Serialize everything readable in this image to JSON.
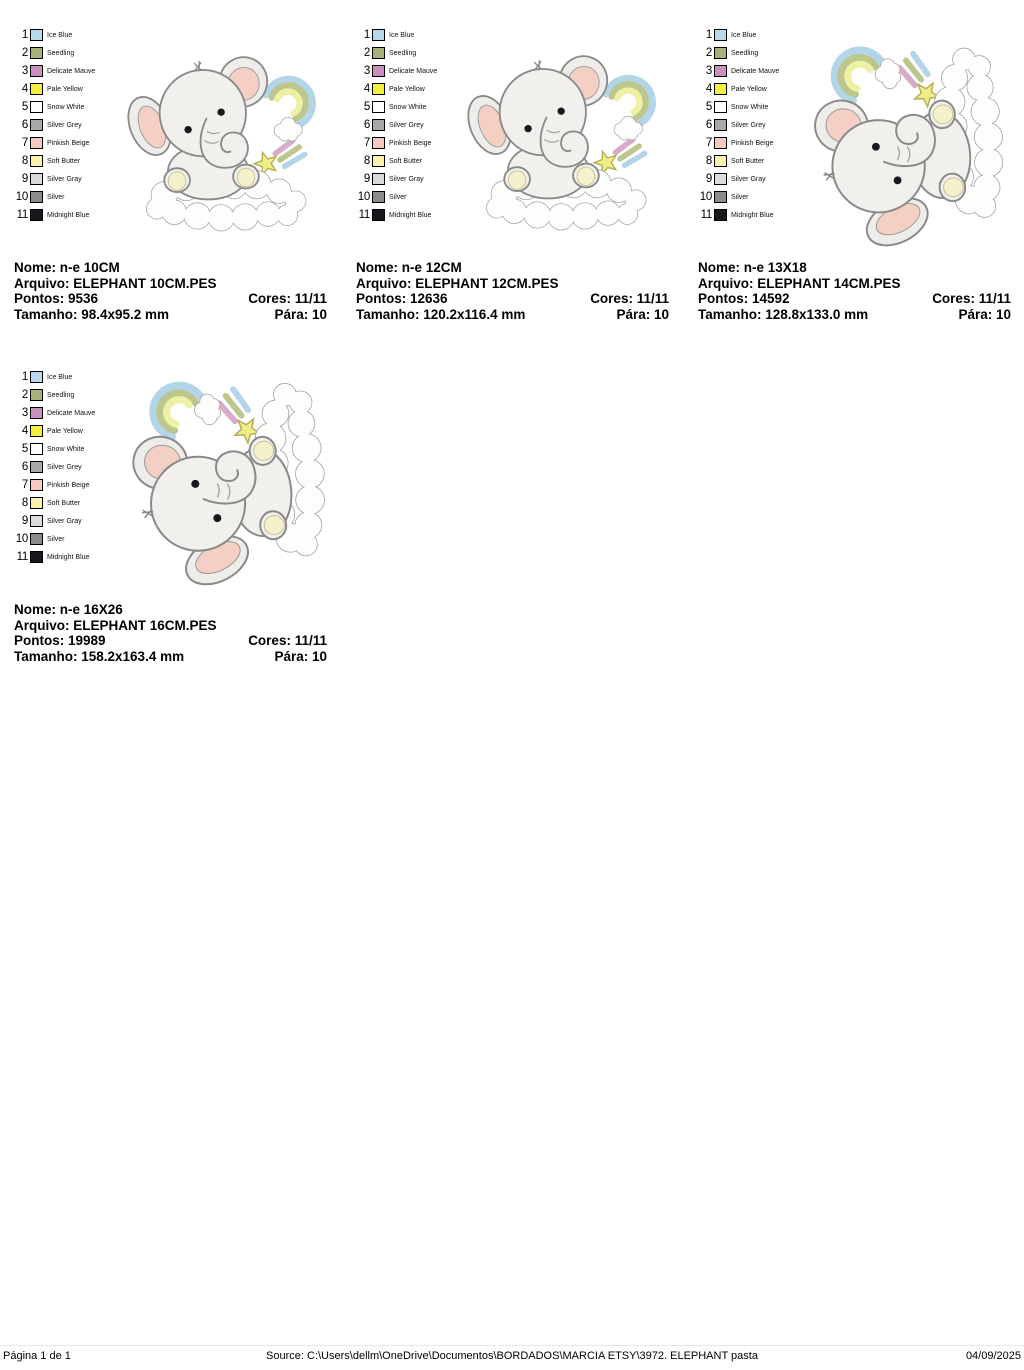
{
  "legend": {
    "colors": [
      {
        "num": "1",
        "name": "Ice Blue",
        "hex": "#b8d9ea"
      },
      {
        "num": "2",
        "name": "Seedling",
        "hex": "#a9b177"
      },
      {
        "num": "3",
        "name": "Delicate Mauve",
        "hex": "#ca90bd"
      },
      {
        "num": "4",
        "name": "Pale Yellow",
        "hex": "#f3ef41"
      },
      {
        "num": "5",
        "name": "Snow White",
        "hex": "#ffffff"
      },
      {
        "num": "6",
        "name": "Silver Grey",
        "hex": "#a8a8a8"
      },
      {
        "num": "7",
        "name": "Pinkish Beige",
        "hex": "#f5cac0"
      },
      {
        "num": "8",
        "name": "Soft Butter",
        "hex": "#f9f4ab"
      },
      {
        "num": "9",
        "name": "Silver Gray",
        "hex": "#dbdbdb"
      },
      {
        "num": "10",
        "name": "Silver",
        "hex": "#8b8b8b"
      },
      {
        "num": "11",
        "name": "Midnight Blue",
        "hex": "#17171d"
      }
    ]
  },
  "designs": [
    {
      "nome": "Nome: n-e 10CM",
      "arquivo": "Arquivo: ELEPHANT 10CM.PES",
      "pontos": "Pontos: 9536",
      "cores": "Cores: 11/11",
      "tamanho": "Tamanho: 98.4x95.2 mm",
      "para": "Pára: 10"
    },
    {
      "nome": "Nome: n-e 12CM",
      "arquivo": "Arquivo: ELEPHANT 12CM.PES",
      "pontos": "Pontos: 12636",
      "cores": "Cores: 11/11",
      "tamanho": "Tamanho: 120.2x116.4 mm",
      "para": "Pára: 10"
    },
    {
      "nome": "Nome: n-e 13X18",
      "arquivo": "Arquivo: ELEPHANT 14CM.PES",
      "pontos": "Pontos: 14592",
      "cores": "Cores: 11/11",
      "tamanho": "Tamanho: 128.8x133.0 mm",
      "para": "Pára: 10"
    },
    {
      "nome": "Nome: n-e 16X26",
      "arquivo": "Arquivo: ELEPHANT 16CM.PES",
      "pontos": "Pontos: 19989",
      "cores": "Cores: 11/11",
      "tamanho": "Tamanho: 158.2x163.4 mm",
      "para": "Pára: 10"
    }
  ],
  "footer": {
    "page": "Página 1 de 1",
    "source": "Source: C:\\Users\\dellm\\OneDrive\\Documentos\\BORDADOS\\MARCIA ETSY\\3972. ELEPHANT pasta",
    "date": "04/09/2025"
  }
}
